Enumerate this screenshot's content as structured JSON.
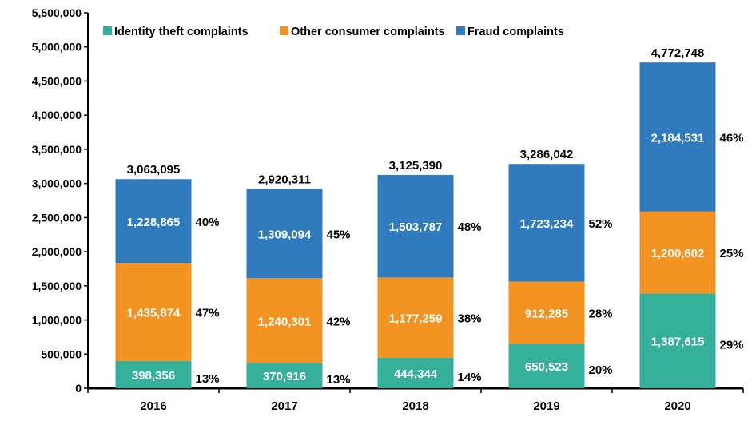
{
  "chart_data": {
    "type": "bar",
    "stacked": true,
    "title": "",
    "xlabel": "",
    "ylabel": "",
    "categories": [
      "2016",
      "2017",
      "2018",
      "2019",
      "2020"
    ],
    "ylim": [
      0,
      5500000
    ],
    "yticks": [
      0,
      500000,
      1000000,
      1500000,
      2000000,
      2500000,
      3000000,
      3500000,
      4000000,
      4500000,
      5000000,
      5500000
    ],
    "ytick_labels": [
      "0",
      "500,000",
      "1,000,000",
      "1,500,000",
      "2,000,000",
      "2,500,000",
      "3,000,000",
      "3,500,000",
      "4,000,000",
      "4,500,000",
      "5,000,000",
      "5,500,000"
    ],
    "grid": false,
    "legend_placement": "top",
    "series": [
      {
        "name": "Identity theft complaints",
        "color": "#35b09b",
        "values": [
          398356,
          370916,
          444344,
          650523,
          1387615
        ],
        "labels": [
          "398,356",
          "370,916",
          "444,344",
          "650,523",
          "1,387,615"
        ],
        "pct": [
          "13%",
          "13%",
          "14%",
          "20%",
          "29%"
        ]
      },
      {
        "name": "Other consumer complaints",
        "color": "#f39322",
        "values": [
          1435874,
          1240301,
          1177259,
          912285,
          1200602
        ],
        "labels": [
          "1,435,874",
          "1,240,301",
          "1,177,259",
          "912,285",
          "1,200,602"
        ],
        "pct": [
          "47%",
          "42%",
          "38%",
          "28%",
          "25%"
        ]
      },
      {
        "name": "Fraud complaints",
        "color": "#2f7bbd",
        "values": [
          1228865,
          1309094,
          1503787,
          1723234,
          2184531
        ],
        "labels": [
          "1,228,865",
          "1,309,094",
          "1,503,787",
          "1,723,234",
          "2,184,531"
        ],
        "pct": [
          "40%",
          "45%",
          "48%",
          "52%",
          "46%"
        ]
      }
    ],
    "totals": [
      "3,063,095",
      "2,920,311",
      "3,125,390",
      "3,286,042",
      "4,772,748"
    ]
  }
}
